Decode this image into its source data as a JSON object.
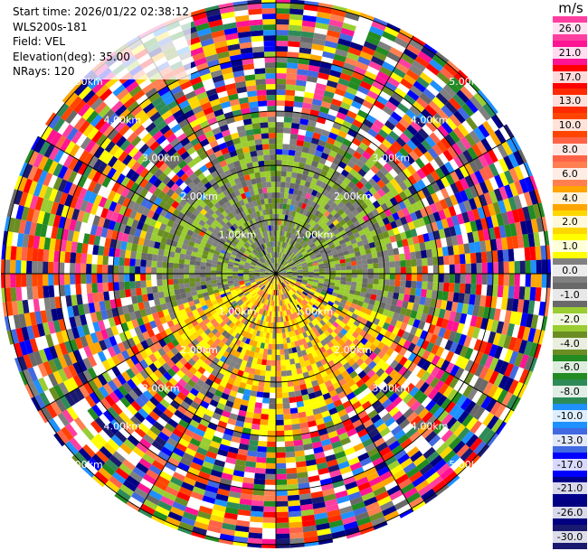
{
  "info": {
    "start_time": "Start time: 2026/01/22 02:38:12",
    "station": "WLS200s-181",
    "field": "Field: VEL",
    "elevation": "Elevation(deg): 35.00",
    "nrays": "NRays: 120"
  },
  "ring_labels": [
    "1.00km",
    "2.00km",
    "3.00km",
    "4.00km",
    "5.00km"
  ],
  "colorbar": {
    "unit": "m/s",
    "ticks": [
      "26.0",
      "21.0",
      "17.0",
      "13.0",
      "10.0",
      "8.0",
      "6.0",
      "4.0",
      "2.0",
      "1.0",
      "0.0",
      "-1.0",
      "-2.0",
      "-4.0",
      "-6.0",
      "-8.0",
      "-10.0",
      "-13.0",
      "-17.0",
      "-21.0",
      "-26.0",
      "-30.0"
    ],
    "colors": [
      "#ff3fa0",
      "#ff1493",
      "#ff0000",
      "#ff2a00",
      "#ff4500",
      "#ff6347",
      "#ff7f50",
      "#ffa500",
      "#ffd700",
      "#ffff00",
      "#808080",
      "#696969",
      "#9acd32",
      "#6b8e23",
      "#228b22",
      "#2e8b57",
      "#1e90ff",
      "#4169e1",
      "#0000ff",
      "#00008b",
      "#000080",
      "#191970"
    ]
  }
}
